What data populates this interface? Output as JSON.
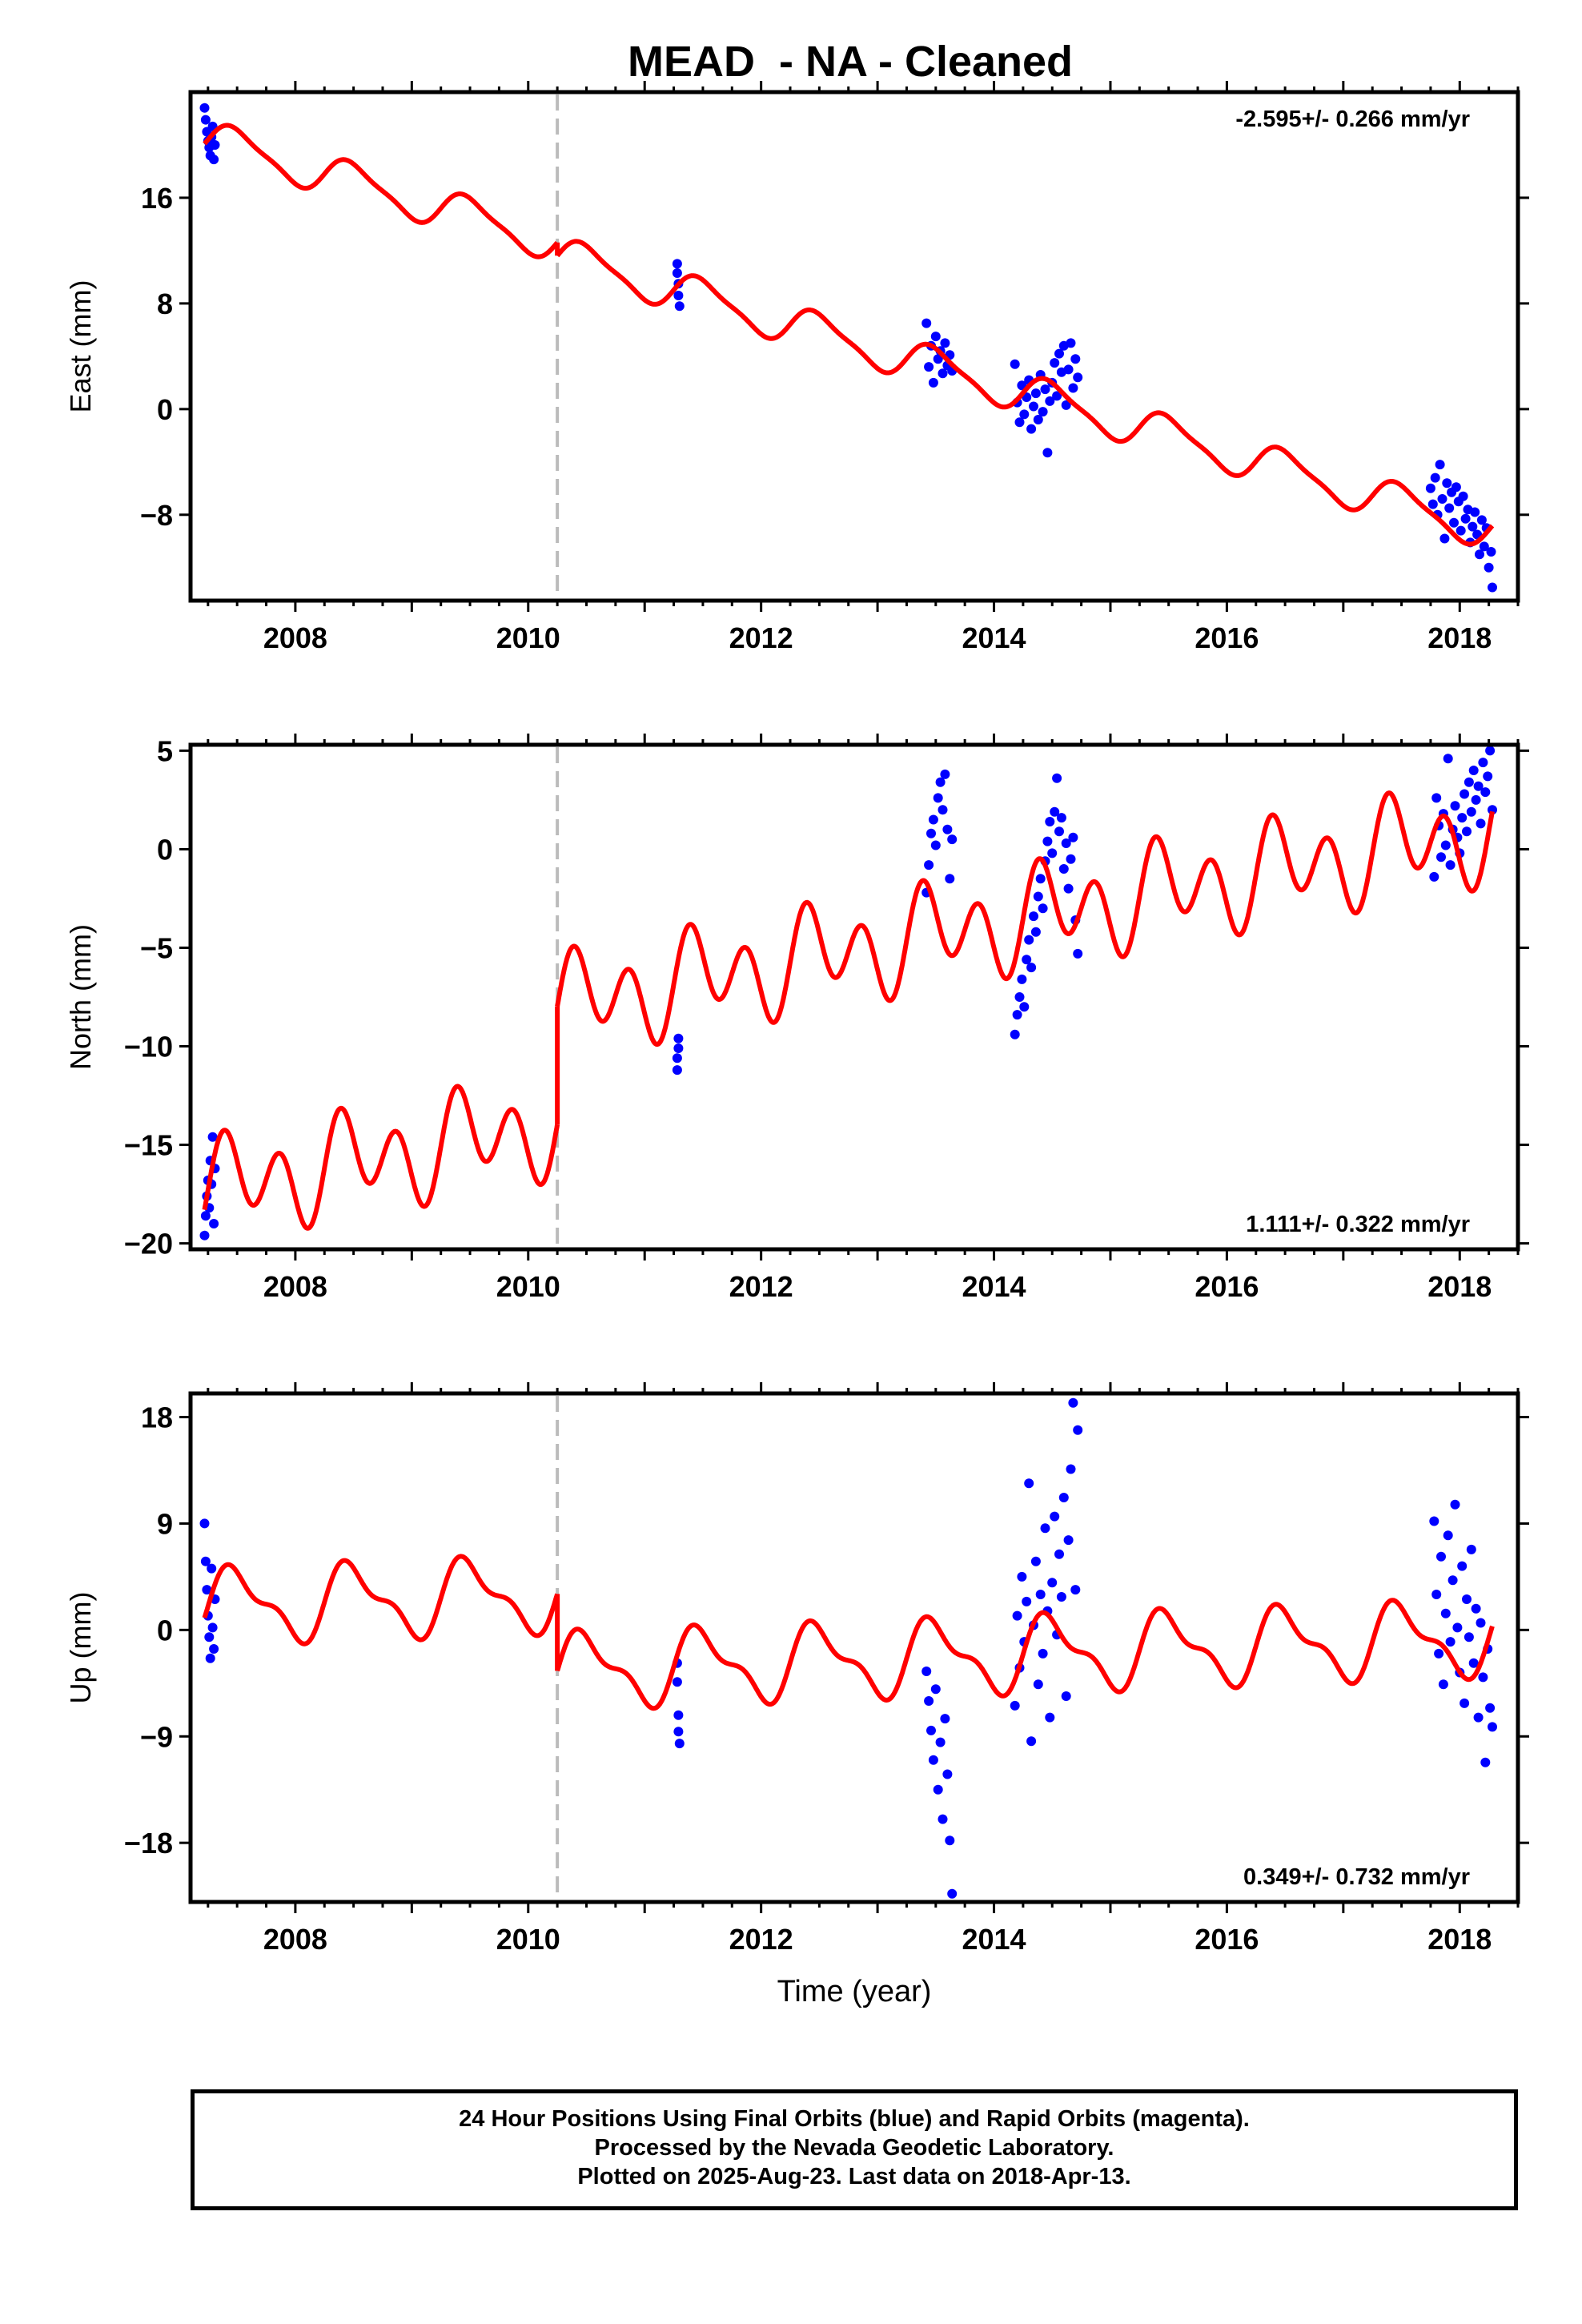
{
  "title": "MEAD  - NA - Cleaned",
  "footer": {
    "line1": "24 Hour Positions Using Final Orbits (blue) and Rapid Orbits (magenta).",
    "line2": "Processed by the Nevada Geodetic Laboratory.",
    "line3": "Plotted on 2025-Aug-23. Last data on 2018-Apr-13."
  },
  "colors": {
    "points": "#0000ff",
    "model": "#ff0000",
    "offset_line": "#bbbbbb",
    "frame": "#000000"
  },
  "chart_data": [
    {
      "type": "scatter",
      "component": "East",
      "ylabel": "East (mm)",
      "xlabel": "",
      "xlim": [
        2007.1,
        2018.5
      ],
      "ylim": [
        -14.5,
        24
      ],
      "xticks": [
        2008,
        2010,
        2012,
        2014,
        2016,
        2018
      ],
      "yticks": [
        -8,
        0,
        8,
        16
      ],
      "rate_label": "-2.595+/- 0.266 mm/yr",
      "rate_position": "top-right",
      "equipment_offset_year": 2010.25,
      "model": {
        "trend": -2.595,
        "reference_value": 20.4,
        "reference_year": 2007.25,
        "annual_amplitude": 1.4,
        "semiannual_amplitude": 0.35,
        "offset_at_equipment_change": -1.0
      },
      "points": [
        {
          "x": 2007.22,
          "y": 22.8
        },
        {
          "x": 2007.23,
          "y": 21.9
        },
        {
          "x": 2007.24,
          "y": 21.0
        },
        {
          "x": 2007.25,
          "y": 20.3
        },
        {
          "x": 2007.26,
          "y": 19.8
        },
        {
          "x": 2007.27,
          "y": 19.2
        },
        {
          "x": 2007.28,
          "y": 20.6
        },
        {
          "x": 2007.29,
          "y": 21.4
        },
        {
          "x": 2007.3,
          "y": 18.9
        },
        {
          "x": 2007.31,
          "y": 20.0
        },
        {
          "x": 2011.28,
          "y": 11.0
        },
        {
          "x": 2011.28,
          "y": 10.3
        },
        {
          "x": 2011.29,
          "y": 9.5
        },
        {
          "x": 2011.29,
          "y": 8.6
        },
        {
          "x": 2011.3,
          "y": 7.8
        },
        {
          "x": 2013.42,
          "y": 6.5
        },
        {
          "x": 2013.44,
          "y": 3.2
        },
        {
          "x": 2013.46,
          "y": 4.8
        },
        {
          "x": 2013.48,
          "y": 2.0
        },
        {
          "x": 2013.5,
          "y": 5.5
        },
        {
          "x": 2013.52,
          "y": 3.8
        },
        {
          "x": 2013.54,
          "y": 4.4
        },
        {
          "x": 2013.56,
          "y": 2.7
        },
        {
          "x": 2013.58,
          "y": 5.0
        },
        {
          "x": 2013.6,
          "y": 3.3
        },
        {
          "x": 2013.62,
          "y": 4.1
        },
        {
          "x": 2013.64,
          "y": 2.9
        },
        {
          "x": 2014.18,
          "y": 3.4
        },
        {
          "x": 2014.2,
          "y": 0.5
        },
        {
          "x": 2014.22,
          "y": -1.0
        },
        {
          "x": 2014.24,
          "y": 1.8
        },
        {
          "x": 2014.26,
          "y": -0.4
        },
        {
          "x": 2014.28,
          "y": 0.9
        },
        {
          "x": 2014.3,
          "y": 2.2
        },
        {
          "x": 2014.32,
          "y": -1.5
        },
        {
          "x": 2014.34,
          "y": 0.2
        },
        {
          "x": 2014.36,
          "y": 1.2
        },
        {
          "x": 2014.38,
          "y": -0.8
        },
        {
          "x": 2014.4,
          "y": 2.6
        },
        {
          "x": 2014.42,
          "y": -0.2
        },
        {
          "x": 2014.44,
          "y": 1.5
        },
        {
          "x": 2014.46,
          "y": -3.3
        },
        {
          "x": 2014.48,
          "y": 0.6
        },
        {
          "x": 2014.5,
          "y": 2.0
        },
        {
          "x": 2014.52,
          "y": 3.5
        },
        {
          "x": 2014.54,
          "y": 1.0
        },
        {
          "x": 2014.56,
          "y": 4.2
        },
        {
          "x": 2014.58,
          "y": 2.8
        },
        {
          "x": 2014.6,
          "y": 4.8
        },
        {
          "x": 2014.62,
          "y": 0.3
        },
        {
          "x": 2014.64,
          "y": 3.0
        },
        {
          "x": 2014.66,
          "y": 5.0
        },
        {
          "x": 2014.68,
          "y": 1.6
        },
        {
          "x": 2014.7,
          "y": 3.8
        },
        {
          "x": 2014.72,
          "y": 2.4
        },
        {
          "x": 2017.75,
          "y": -6.0
        },
        {
          "x": 2017.77,
          "y": -7.2
        },
        {
          "x": 2017.79,
          "y": -5.2
        },
        {
          "x": 2017.81,
          "y": -8.0
        },
        {
          "x": 2017.83,
          "y": -4.2
        },
        {
          "x": 2017.85,
          "y": -6.8
        },
        {
          "x": 2017.87,
          "y": -9.8
        },
        {
          "x": 2017.89,
          "y": -5.6
        },
        {
          "x": 2017.91,
          "y": -7.5
        },
        {
          "x": 2017.93,
          "y": -6.3
        },
        {
          "x": 2017.95,
          "y": -8.6
        },
        {
          "x": 2017.97,
          "y": -5.9
        },
        {
          "x": 2017.99,
          "y": -7.0
        },
        {
          "x": 2018.01,
          "y": -9.2
        },
        {
          "x": 2018.03,
          "y": -6.6
        },
        {
          "x": 2018.05,
          "y": -8.3
        },
        {
          "x": 2018.07,
          "y": -7.6
        },
        {
          "x": 2018.09,
          "y": -10.1
        },
        {
          "x": 2018.11,
          "y": -8.9
        },
        {
          "x": 2018.13,
          "y": -7.8
        },
        {
          "x": 2018.15,
          "y": -9.5
        },
        {
          "x": 2018.17,
          "y": -11.0
        },
        {
          "x": 2018.19,
          "y": -8.4
        },
        {
          "x": 2018.21,
          "y": -10.4
        },
        {
          "x": 2018.23,
          "y": -9.0
        },
        {
          "x": 2018.25,
          "y": -12.0
        },
        {
          "x": 2018.27,
          "y": -10.8
        },
        {
          "x": 2018.28,
          "y": -13.5
        }
      ]
    },
    {
      "type": "scatter",
      "component": "North",
      "ylabel": "North (mm)",
      "xlabel": "",
      "xlim": [
        2007.1,
        2018.5
      ],
      "ylim": [
        -20.3,
        5.3
      ],
      "xticks": [
        2008,
        2010,
        2012,
        2014,
        2016,
        2018
      ],
      "yticks": [
        -20,
        -15,
        -10,
        -5,
        0,
        5
      ],
      "rate_label": "1.111+/- 0.322 mm/yr",
      "rate_position": "bottom-right",
      "equipment_offset_year": 2010.25,
      "model": {
        "trend": 1.111,
        "reference_value": -17.3,
        "reference_year": 2007.25,
        "annual_amplitude": 1.2,
        "semiannual_amplitude": 2.0,
        "offset_at_equipment_change": 6.0
      },
      "points": [
        {
          "x": 2007.22,
          "y": -19.6
        },
        {
          "x": 2007.23,
          "y": -18.6
        },
        {
          "x": 2007.24,
          "y": -17.6
        },
        {
          "x": 2007.25,
          "y": -16.8
        },
        {
          "x": 2007.26,
          "y": -18.2
        },
        {
          "x": 2007.27,
          "y": -15.8
        },
        {
          "x": 2007.28,
          "y": -17.0
        },
        {
          "x": 2007.29,
          "y": -14.6
        },
        {
          "x": 2007.3,
          "y": -19.0
        },
        {
          "x": 2007.31,
          "y": -16.2
        },
        {
          "x": 2011.28,
          "y": -11.2
        },
        {
          "x": 2011.28,
          "y": -10.6
        },
        {
          "x": 2011.29,
          "y": -10.1
        },
        {
          "x": 2011.29,
          "y": -9.6
        },
        {
          "x": 2013.42,
          "y": -2.2
        },
        {
          "x": 2013.44,
          "y": -0.8
        },
        {
          "x": 2013.46,
          "y": 0.8
        },
        {
          "x": 2013.48,
          "y": 1.5
        },
        {
          "x": 2013.5,
          "y": 0.2
        },
        {
          "x": 2013.52,
          "y": 2.6
        },
        {
          "x": 2013.54,
          "y": 3.4
        },
        {
          "x": 2013.56,
          "y": 2.0
        },
        {
          "x": 2013.58,
          "y": 3.8
        },
        {
          "x": 2013.6,
          "y": 1.0
        },
        {
          "x": 2013.62,
          "y": -1.5
        },
        {
          "x": 2013.64,
          "y": 0.5
        },
        {
          "x": 2014.18,
          "y": -9.4
        },
        {
          "x": 2014.2,
          "y": -8.4
        },
        {
          "x": 2014.22,
          "y": -7.5
        },
        {
          "x": 2014.24,
          "y": -6.6
        },
        {
          "x": 2014.26,
          "y": -8.0
        },
        {
          "x": 2014.28,
          "y": -5.6
        },
        {
          "x": 2014.3,
          "y": -4.6
        },
        {
          "x": 2014.32,
          "y": -6.0
        },
        {
          "x": 2014.34,
          "y": -3.4
        },
        {
          "x": 2014.36,
          "y": -4.2
        },
        {
          "x": 2014.38,
          "y": -2.4
        },
        {
          "x": 2014.4,
          "y": -1.5
        },
        {
          "x": 2014.42,
          "y": -3.0
        },
        {
          "x": 2014.44,
          "y": -0.6
        },
        {
          "x": 2014.46,
          "y": 0.4
        },
        {
          "x": 2014.48,
          "y": 1.4
        },
        {
          "x": 2014.5,
          "y": -0.2
        },
        {
          "x": 2014.52,
          "y": 1.9
        },
        {
          "x": 2014.54,
          "y": 3.6
        },
        {
          "x": 2014.56,
          "y": 0.9
        },
        {
          "x": 2014.58,
          "y": 1.6
        },
        {
          "x": 2014.6,
          "y": -1.0
        },
        {
          "x": 2014.62,
          "y": 0.3
        },
        {
          "x": 2014.64,
          "y": -2.0
        },
        {
          "x": 2014.66,
          "y": -0.5
        },
        {
          "x": 2014.68,
          "y": 0.6
        },
        {
          "x": 2014.7,
          "y": -3.6
        },
        {
          "x": 2014.72,
          "y": -5.3
        },
        {
          "x": 2017.78,
          "y": -1.4
        },
        {
          "x": 2017.8,
          "y": 2.6
        },
        {
          "x": 2017.82,
          "y": 1.2
        },
        {
          "x": 2017.84,
          "y": -0.4
        },
        {
          "x": 2017.86,
          "y": 1.8
        },
        {
          "x": 2017.88,
          "y": 0.2
        },
        {
          "x": 2017.9,
          "y": 4.6
        },
        {
          "x": 2017.92,
          "y": -0.8
        },
        {
          "x": 2017.94,
          "y": 1.0
        },
        {
          "x": 2017.96,
          "y": 2.2
        },
        {
          "x": 2017.98,
          "y": 0.6
        },
        {
          "x": 2018.0,
          "y": -0.2
        },
        {
          "x": 2018.02,
          "y": 1.6
        },
        {
          "x": 2018.04,
          "y": 2.8
        },
        {
          "x": 2018.06,
          "y": 0.9
        },
        {
          "x": 2018.08,
          "y": 3.4
        },
        {
          "x": 2018.1,
          "y": 1.9
        },
        {
          "x": 2018.12,
          "y": 4.0
        },
        {
          "x": 2018.14,
          "y": 2.5
        },
        {
          "x": 2018.16,
          "y": 3.2
        },
        {
          "x": 2018.18,
          "y": 1.3
        },
        {
          "x": 2018.2,
          "y": 4.4
        },
        {
          "x": 2018.22,
          "y": 2.9
        },
        {
          "x": 2018.24,
          "y": 3.7
        },
        {
          "x": 2018.26,
          "y": 5.0
        },
        {
          "x": 2018.28,
          "y": 2.0
        }
      ]
    },
    {
      "type": "scatter",
      "component": "Up",
      "ylabel": "Up (mm)",
      "xlabel": "Time (year)",
      "xlim": [
        2007.1,
        2018.5
      ],
      "ylim": [
        -23,
        20
      ],
      "xticks": [
        2008,
        2010,
        2012,
        2014,
        2016,
        2018
      ],
      "yticks": [
        -18,
        -9,
        0,
        9,
        18
      ],
      "rate_label": "0.349+/- 0.732 mm/yr",
      "rate_position": "bottom-right",
      "equipment_offset_year": 2010.25,
      "model": {
        "trend": 0.349,
        "reference_value": 2.0,
        "reference_year": 2007.25,
        "annual_amplitude": 2.8,
        "semiannual_amplitude": 1.2,
        "offset_at_equipment_change": -6.5
      },
      "points": [
        {
          "x": 2007.22,
          "y": 9.0
        },
        {
          "x": 2007.23,
          "y": 5.8
        },
        {
          "x": 2007.24,
          "y": 3.4
        },
        {
          "x": 2007.25,
          "y": 1.2
        },
        {
          "x": 2007.26,
          "y": -0.6
        },
        {
          "x": 2007.27,
          "y": -2.4
        },
        {
          "x": 2007.28,
          "y": 5.2
        },
        {
          "x": 2007.29,
          "y": 0.2
        },
        {
          "x": 2007.3,
          "y": -1.6
        },
        {
          "x": 2007.31,
          "y": 2.6
        },
        {
          "x": 2011.28,
          "y": -2.8
        },
        {
          "x": 2011.28,
          "y": -4.4
        },
        {
          "x": 2011.29,
          "y": -7.2
        },
        {
          "x": 2011.29,
          "y": -8.6
        },
        {
          "x": 2011.3,
          "y": -9.6
        },
        {
          "x": 2013.42,
          "y": -3.5
        },
        {
          "x": 2013.44,
          "y": -6.0
        },
        {
          "x": 2013.46,
          "y": -8.5
        },
        {
          "x": 2013.48,
          "y": -11.0
        },
        {
          "x": 2013.5,
          "y": -5.0
        },
        {
          "x": 2013.52,
          "y": -13.5
        },
        {
          "x": 2013.54,
          "y": -9.5
        },
        {
          "x": 2013.56,
          "y": -16.0
        },
        {
          "x": 2013.58,
          "y": -7.5
        },
        {
          "x": 2013.6,
          "y": -12.2
        },
        {
          "x": 2013.62,
          "y": -17.8
        },
        {
          "x": 2013.64,
          "y": -22.3
        },
        {
          "x": 2014.18,
          "y": -6.4
        },
        {
          "x": 2014.2,
          "y": 1.2
        },
        {
          "x": 2014.22,
          "y": -3.2
        },
        {
          "x": 2014.24,
          "y": 4.5
        },
        {
          "x": 2014.26,
          "y": -1.0
        },
        {
          "x": 2014.28,
          "y": 2.4
        },
        {
          "x": 2014.3,
          "y": 12.4
        },
        {
          "x": 2014.32,
          "y": -9.4
        },
        {
          "x": 2014.34,
          "y": 0.4
        },
        {
          "x": 2014.36,
          "y": 5.8
        },
        {
          "x": 2014.38,
          "y": -4.6
        },
        {
          "x": 2014.4,
          "y": 3.0
        },
        {
          "x": 2014.42,
          "y": -2.0
        },
        {
          "x": 2014.44,
          "y": 8.6
        },
        {
          "x": 2014.46,
          "y": 1.6
        },
        {
          "x": 2014.48,
          "y": -7.4
        },
        {
          "x": 2014.5,
          "y": 4.0
        },
        {
          "x": 2014.52,
          "y": 9.6
        },
        {
          "x": 2014.54,
          "y": -0.4
        },
        {
          "x": 2014.56,
          "y": 6.4
        },
        {
          "x": 2014.58,
          "y": 2.8
        },
        {
          "x": 2014.6,
          "y": 11.2
        },
        {
          "x": 2014.62,
          "y": -5.6
        },
        {
          "x": 2014.64,
          "y": 7.6
        },
        {
          "x": 2014.66,
          "y": 13.6
        },
        {
          "x": 2014.68,
          "y": 19.2
        },
        {
          "x": 2014.7,
          "y": 3.4
        },
        {
          "x": 2014.72,
          "y": 16.9
        },
        {
          "x": 2017.78,
          "y": 9.2
        },
        {
          "x": 2017.8,
          "y": 3.0
        },
        {
          "x": 2017.82,
          "y": -2.0
        },
        {
          "x": 2017.84,
          "y": 6.2
        },
        {
          "x": 2017.86,
          "y": -4.6
        },
        {
          "x": 2017.88,
          "y": 1.4
        },
        {
          "x": 2017.9,
          "y": 8.0
        },
        {
          "x": 2017.92,
          "y": -1.0
        },
        {
          "x": 2017.94,
          "y": 4.2
        },
        {
          "x": 2017.96,
          "y": 10.6
        },
        {
          "x": 2017.98,
          "y": 0.2
        },
        {
          "x": 2018.0,
          "y": -3.6
        },
        {
          "x": 2018.02,
          "y": 5.4
        },
        {
          "x": 2018.04,
          "y": -6.2
        },
        {
          "x": 2018.06,
          "y": 2.6
        },
        {
          "x": 2018.08,
          "y": -0.6
        },
        {
          "x": 2018.1,
          "y": 6.8
        },
        {
          "x": 2018.12,
          "y": -2.8
        },
        {
          "x": 2018.14,
          "y": 1.8
        },
        {
          "x": 2018.16,
          "y": -7.4
        },
        {
          "x": 2018.18,
          "y": 0.6
        },
        {
          "x": 2018.2,
          "y": -4.0
        },
        {
          "x": 2018.22,
          "y": -11.2
        },
        {
          "x": 2018.24,
          "y": -1.6
        },
        {
          "x": 2018.26,
          "y": -6.6
        },
        {
          "x": 2018.28,
          "y": -8.2
        }
      ]
    }
  ]
}
